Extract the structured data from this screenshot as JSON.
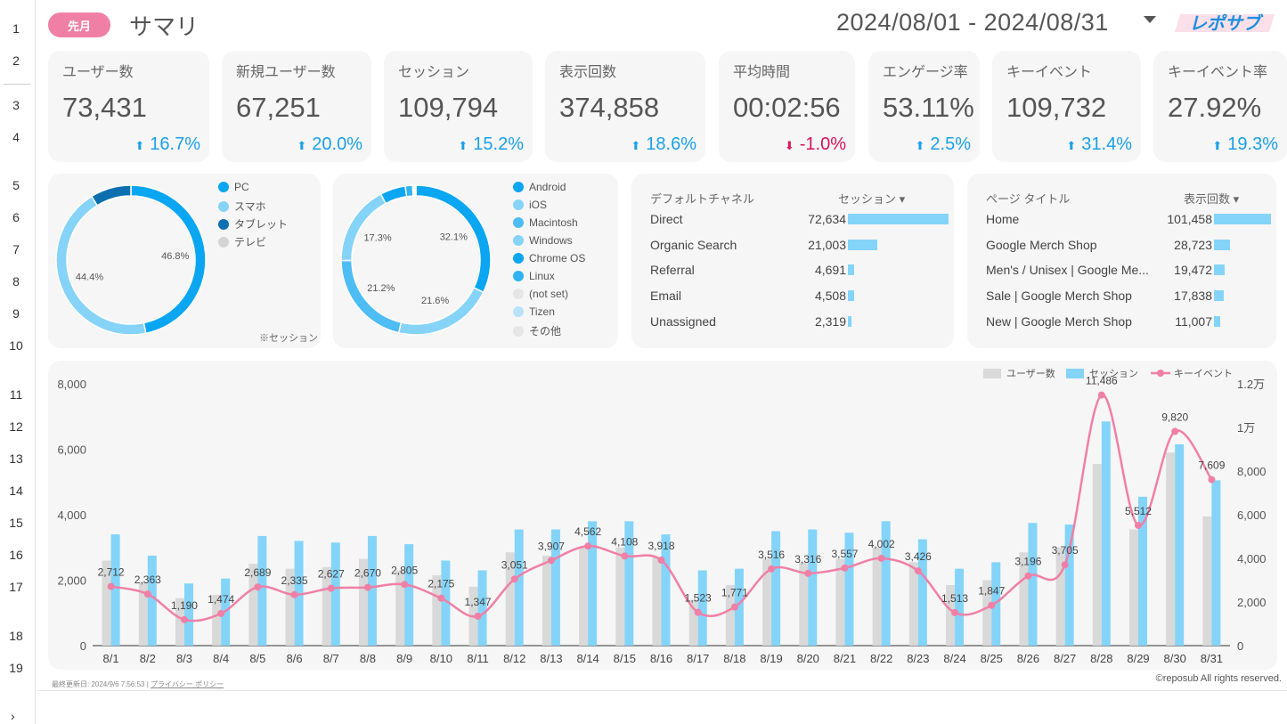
{
  "row_numbers": [
    "1",
    "2",
    "3",
    "4",
    "5",
    "6",
    "7",
    "8",
    "9",
    "10",
    "11",
    "12",
    "13",
    "14",
    "15",
    "16",
    "17",
    "18",
    "19"
  ],
  "header": {
    "badge": "先月",
    "title": "サマリ",
    "date_range": "2024/08/01 - 2024/08/31",
    "logo_text": "レポサブ"
  },
  "kpis": [
    {
      "label": "ユーザー数",
      "value": "73,431",
      "delta": "16.7%",
      "dir": "up"
    },
    {
      "label": "新規ユーザー数",
      "value": "67,251",
      "delta": "20.0%",
      "dir": "up"
    },
    {
      "label": "セッション",
      "value": "109,794",
      "delta": "15.2%",
      "dir": "up"
    },
    {
      "label": "表示回数",
      "value": "374,858",
      "delta": "18.6%",
      "dir": "up"
    },
    {
      "label": "平均時間",
      "value": "00:02:56",
      "delta": "-1.0%",
      "dir": "down"
    },
    {
      "label": "エンゲージ率",
      "value": "53.11%",
      "delta": "2.5%",
      "dir": "up"
    },
    {
      "label": "キーイベント",
      "value": "109,732",
      "delta": "31.4%",
      "dir": "up"
    },
    {
      "label": "キーイベント率",
      "value": "27.92%",
      "delta": "19.3%",
      "dir": "up"
    }
  ],
  "device_donut": {
    "note": "※セッション",
    "segments": [
      {
        "name": "PC",
        "value": 46.8,
        "label": "46.8%",
        "color": "#0aa6f2"
      },
      {
        "name": "スマホ",
        "value": 44.4,
        "label": "44.4%",
        "color": "#86d3f8"
      },
      {
        "name": "タブレット",
        "value": 8.8,
        "label": "",
        "color": "#0b6fb0"
      },
      {
        "name": "テレビ",
        "value": 0,
        "label": "",
        "color": "#d4d4d4"
      }
    ]
  },
  "os_donut": {
    "segments": [
      {
        "name": "Android",
        "value": 32.1,
        "label": "32.1%",
        "color": "#0aa6f2"
      },
      {
        "name": "iOS",
        "value": 21.6,
        "label": "21.6%",
        "color": "#86d3f8"
      },
      {
        "name": "Macintosh",
        "value": 21.2,
        "label": "21.2%",
        "color": "#4dbdf4"
      },
      {
        "name": "Windows",
        "value": 17.3,
        "label": "17.3%",
        "color": "#86d3f8"
      },
      {
        "name": "Chrome OS",
        "value": 5.5,
        "label": "",
        "color": "#0aa6f2"
      },
      {
        "name": "Linux",
        "value": 1.6,
        "label": "",
        "color": "#30b2f3"
      },
      {
        "name": "(not set)",
        "value": 0.3,
        "label": "",
        "color": "#e6e6e6"
      },
      {
        "name": "Tizen",
        "value": 0.2,
        "label": "",
        "color": "#b9e2fa"
      },
      {
        "name": "その他",
        "value": 0.2,
        "label": "",
        "color": "#e6e6e6"
      }
    ]
  },
  "channel_table": {
    "col1": "デフォルトチャネル",
    "col2": "セッション ▾",
    "rows": [
      {
        "name": "Direct",
        "value": 72634,
        "display": "72,634"
      },
      {
        "name": "Organic Search",
        "value": 21003,
        "display": "21,003"
      },
      {
        "name": "Referral",
        "value": 4691,
        "display": "4,691"
      },
      {
        "name": "Email",
        "value": 4508,
        "display": "4,508"
      },
      {
        "name": "Unassigned",
        "value": 2319,
        "display": "2,319"
      }
    ]
  },
  "page_table": {
    "col1": "ページ タイトル",
    "col2": "表示回数 ▾",
    "rows": [
      {
        "name": "Home",
        "value": 101458,
        "display": "101,458"
      },
      {
        "name": "Google Merch Shop",
        "value": 28723,
        "display": "28,723"
      },
      {
        "name": "Men's / Unisex | Google Me...",
        "value": 19472,
        "display": "19,472"
      },
      {
        "name": "Sale | Google Merch Shop",
        "value": 17838,
        "display": "17,838"
      },
      {
        "name": "New | Google Merch Shop",
        "value": 11007,
        "display": "11,007"
      }
    ]
  },
  "chart_data": {
    "type": "bar",
    "categories": [
      "8/1",
      "8/2",
      "8/3",
      "8/4",
      "8/5",
      "8/6",
      "8/7",
      "8/8",
      "8/9",
      "8/10",
      "8/11",
      "8/12",
      "8/13",
      "8/14",
      "8/15",
      "8/16",
      "8/17",
      "8/18",
      "8/19",
      "8/20",
      "8/21",
      "8/22",
      "8/23",
      "8/24",
      "8/25",
      "8/26",
      "8/27",
      "8/28",
      "8/29",
      "8/30",
      "8/31"
    ],
    "series": [
      {
        "name": "ユーザー数",
        "type": "bar",
        "axis": "left",
        "color": "#d9d9d9",
        "values": [
          2600,
          1950,
          1450,
          1550,
          2500,
          2350,
          2400,
          2650,
          2300,
          2150,
          1800,
          2850,
          2750,
          3000,
          3000,
          2700,
          1400,
          1850,
          2650,
          2550,
          2650,
          3000,
          2550,
          1850,
          2000,
          2850,
          3000,
          5550,
          3550,
          5900,
          3950
        ]
      },
      {
        "name": "セッション",
        "type": "bar",
        "axis": "left",
        "color": "#84d4f9",
        "values": [
          3400,
          2750,
          1900,
          2050,
          3350,
          3200,
          3150,
          3350,
          3100,
          2600,
          2300,
          3550,
          3550,
          3800,
          3800,
          3400,
          2300,
          2350,
          3500,
          3550,
          3450,
          3800,
          3250,
          2350,
          2550,
          3750,
          3700,
          6850,
          4550,
          6150,
          5050
        ]
      },
      {
        "name": "キーイベント",
        "type": "line",
        "axis": "right",
        "color": "#f07fa6",
        "values": [
          2712,
          2363,
          1190,
          1474,
          2689,
          2335,
          2627,
          2670,
          2805,
          2175,
          1347,
          3051,
          3907,
          4562,
          4108,
          3918,
          1523,
          1771,
          3516,
          3316,
          3557,
          4002,
          3426,
          1513,
          1847,
          3196,
          3705,
          11486,
          5512,
          9820,
          7609
        ],
        "labels": [
          "2,712",
          "2,363",
          "1,190",
          "1,474",
          "2,689",
          "2,335",
          "2,627",
          "2,670",
          "2,805",
          "2,175",
          "1,347",
          "3,051",
          "3,907",
          "4,562",
          "4,108",
          "3,918",
          "1,523",
          "1,771",
          "3,516",
          "3,316",
          "3,557",
          "4,002",
          "3,426",
          "1,513",
          "1,847",
          "3,196",
          "3,705",
          "11,486",
          "5,512",
          "9,820",
          "7,609"
        ]
      }
    ],
    "ylim_left": [
      0,
      8000
    ],
    "yticks_left": [
      "0",
      "2,000",
      "4,000",
      "6,000",
      "8,000"
    ],
    "ylim_right": [
      0,
      12000
    ],
    "yticks_right": [
      "0",
      "2,000",
      "4,000",
      "6,000",
      "8,000",
      "1万",
      "1.2万"
    ],
    "legend": "top-right",
    "grid": false
  },
  "footer": {
    "updated": "最終更新日: 2024/9/6 7:56:53",
    "separator": "|",
    "privacy": "プライバシー ポリシー",
    "copyright": "©reposub All rights reserved."
  }
}
